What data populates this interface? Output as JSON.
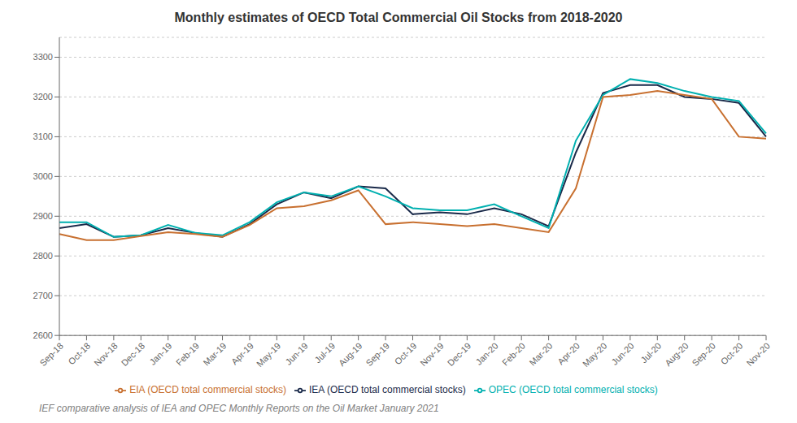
{
  "chart_data": {
    "type": "line",
    "title": "Monthly estimates of OECD Total Commercial Oil Stocks from 2018-2020",
    "subtitle": "IEF comparative analysis of IEA and OPEC Monthly Reports on the Oil Market January 2021",
    "categories": [
      "Sep-18",
      "Oct-18",
      "Nov-18",
      "Dec-18",
      "Jan-19",
      "Feb-19",
      "Mar-19",
      "Apr-19",
      "May-19",
      "Jun-19",
      "Jul-19",
      "Aug-19",
      "Sep-19",
      "Oct-19",
      "Nov-19",
      "Dec-19",
      "Jan-20",
      "Feb-20",
      "Mar-20",
      "Apr-20",
      "May-20",
      "Jun-20",
      "Jul-20",
      "Aug-20",
      "Sep-20",
      "Oct-20",
      "Nov-20"
    ],
    "series": [
      {
        "name": "IEA (OECD total commercial stocks)",
        "color": "#1a2a4a",
        "values": [
          2870,
          2880,
          2848,
          2852,
          2870,
          2858,
          2848,
          2880,
          2930,
          2960,
          2945,
          2975,
          2970,
          2905,
          2910,
          2905,
          2920,
          2905,
          2875,
          3060,
          3210,
          3230,
          3230,
          3200,
          3195,
          3185,
          3100
        ]
      },
      {
        "name": "OPEC (OECD total commercial stocks)",
        "color": "#00b0b0",
        "values": [
          2885,
          2885,
          2848,
          2852,
          2878,
          2858,
          2852,
          2885,
          2935,
          2960,
          2950,
          2975,
          2950,
          2920,
          2915,
          2915,
          2930,
          2900,
          2870,
          3090,
          3205,
          3245,
          3235,
          3215,
          3200,
          3190,
          3108
        ]
      },
      {
        "name": "EIA (OECD total commercial stocks)",
        "color": "#c87030",
        "values": [
          2855,
          2840,
          2840,
          2850,
          2860,
          2855,
          2848,
          2878,
          2920,
          2925,
          2940,
          2965,
          2880,
          2885,
          2880,
          2875,
          2880,
          2870,
          2860,
          2970,
          3200,
          3205,
          3215,
          3205,
          3195,
          3100,
          3095
        ]
      }
    ],
    "ylim": [
      2600,
      3350
    ],
    "yticks": [
      2600,
      2700,
      2800,
      2900,
      3000,
      3100,
      3200,
      3300
    ],
    "grid": true,
    "legend": "bottom"
  }
}
